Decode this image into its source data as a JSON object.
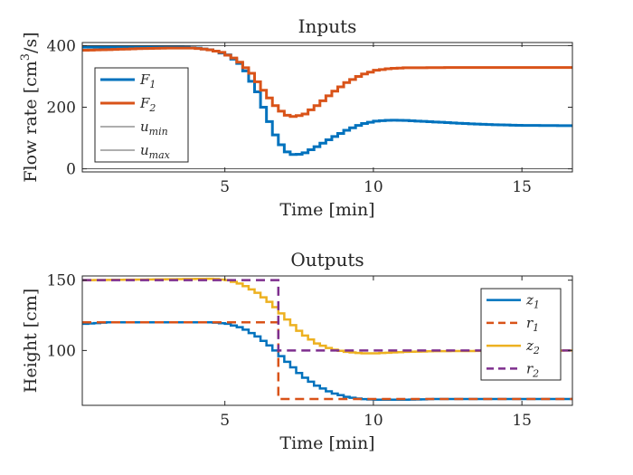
{
  "chart_data": [
    {
      "type": "line",
      "title": "Inputs",
      "xlabel": "Time [min]",
      "ylabel_base": "Flow rate [cm",
      "ylabel_sup": "3",
      "ylabel_tail": "/s]",
      "xlim": [
        0.2,
        16.7
      ],
      "ylim": [
        -10,
        410
      ],
      "xticks": [
        5,
        10,
        15
      ],
      "yticks": [
        0,
        200,
        400
      ],
      "step": true,
      "legend_position": "bottom-left",
      "series": [
        {
          "name": "F",
          "sub": "1",
          "color": "#0072BD",
          "dash": "none",
          "width": 3,
          "points": [
            [
              0.2,
              395
            ],
            [
              3.5,
              395
            ],
            [
              4.0,
              392
            ],
            [
              4.5,
              385
            ],
            [
              5.0,
              370
            ],
            [
              5.5,
              335
            ],
            [
              6.0,
              250
            ],
            [
              6.3,
              175
            ],
            [
              6.6,
              110
            ],
            [
              6.9,
              62
            ],
            [
              7.1,
              48
            ],
            [
              7.3,
              45
            ],
            [
              7.6,
              52
            ],
            [
              8.0,
              72
            ],
            [
              8.5,
              100
            ],
            [
              9.0,
              125
            ],
            [
              9.5,
              145
            ],
            [
              10.0,
              155
            ],
            [
              10.5,
              158
            ],
            [
              11.0,
              157
            ],
            [
              12.0,
              152
            ],
            [
              13.0,
              147
            ],
            [
              14.0,
              143
            ],
            [
              15.0,
              141
            ],
            [
              16.7,
              140
            ]
          ]
        },
        {
          "name": "F",
          "sub": "2",
          "color": "#D95319",
          "dash": "none",
          "width": 3,
          "points": [
            [
              0.2,
              385
            ],
            [
              1.0,
              387
            ],
            [
              2.0,
              390
            ],
            [
              3.0,
              392
            ],
            [
              3.8,
              392
            ],
            [
              4.3,
              388
            ],
            [
              4.8,
              378
            ],
            [
              5.3,
              355
            ],
            [
              5.8,
              310
            ],
            [
              6.2,
              255
            ],
            [
              6.6,
              205
            ],
            [
              6.9,
              178
            ],
            [
              7.1,
              170
            ],
            [
              7.3,
              170
            ],
            [
              7.6,
              178
            ],
            [
              8.0,
              205
            ],
            [
              8.5,
              245
            ],
            [
              9.0,
              280
            ],
            [
              9.5,
              305
            ],
            [
              10.0,
              320
            ],
            [
              10.5,
              326
            ],
            [
              11.0,
              328
            ],
            [
              13.0,
              329
            ],
            [
              16.7,
              329
            ]
          ]
        },
        {
          "name": "u",
          "sub": "min",
          "color": "#262626",
          "dash": "none",
          "width": 0.8,
          "legend_only": true,
          "points": [
            [
              0.2,
              0
            ],
            [
              16.7,
              0
            ]
          ]
        },
        {
          "name": "u",
          "sub": "max",
          "color": "#262626",
          "dash": "none",
          "width": 0.8,
          "legend_only": true,
          "points": [
            [
              0.2,
              400
            ],
            [
              16.7,
              400
            ]
          ]
        }
      ]
    },
    {
      "type": "line",
      "title": "Outputs",
      "xlabel": "Time [min]",
      "ylabel": "Height [cm]",
      "xlim": [
        0.2,
        16.7
      ],
      "ylim": [
        61,
        153
      ],
      "xticks": [
        5,
        10,
        15
      ],
      "yticks": [
        100,
        150
      ],
      "step": true,
      "legend_position": "top-right",
      "series": [
        {
          "name": "z",
          "sub": "1",
          "color": "#0072BD",
          "dash": "none",
          "width": 2.5,
          "points": [
            [
              0.2,
              119
            ],
            [
              1.0,
              120
            ],
            [
              4.5,
              120
            ],
            [
              5.0,
              119
            ],
            [
              5.5,
              116
            ],
            [
              6.0,
              110
            ],
            [
              6.5,
              102
            ],
            [
              7.0,
              92
            ],
            [
              7.5,
              82
            ],
            [
              8.0,
              75
            ],
            [
              8.5,
              70
            ],
            [
              9.0,
              67
            ],
            [
              9.5,
              65.5
            ],
            [
              10.0,
              65
            ],
            [
              11.0,
              65
            ],
            [
              12.0,
              65.5
            ],
            [
              16.7,
              65.5
            ]
          ]
        },
        {
          "name": "r",
          "sub": "1",
          "color": "#D95319",
          "dash": "10,6",
          "width": 2.5,
          "points": [
            [
              0.2,
              120
            ],
            [
              6.8,
              120
            ],
            [
              6.8,
              65.5
            ],
            [
              16.7,
              65.5
            ]
          ]
        },
        {
          "name": "z",
          "sub": "2",
          "color": "#EDB120",
          "dash": "none",
          "width": 2.5,
          "points": [
            [
              0.2,
              150
            ],
            [
              4.5,
              151
            ],
            [
              5.0,
              150
            ],
            [
              5.5,
              147
            ],
            [
              6.0,
              141
            ],
            [
              6.5,
              133
            ],
            [
              7.0,
              122
            ],
            [
              7.5,
              112
            ],
            [
              8.0,
              105
            ],
            [
              8.5,
              101
            ],
            [
              9.0,
              99
            ],
            [
              9.5,
              98
            ],
            [
              10.0,
              98
            ],
            [
              10.5,
              98.5
            ],
            [
              11.0,
              99
            ],
            [
              12.0,
              99.5
            ],
            [
              16.7,
              100
            ]
          ]
        },
        {
          "name": "r",
          "sub": "2",
          "color": "#7E2F8E",
          "dash": "10,6",
          "width": 2.5,
          "points": [
            [
              0.2,
              150
            ],
            [
              6.8,
              150
            ],
            [
              6.8,
              100
            ],
            [
              16.7,
              100
            ]
          ]
        }
      ]
    }
  ]
}
